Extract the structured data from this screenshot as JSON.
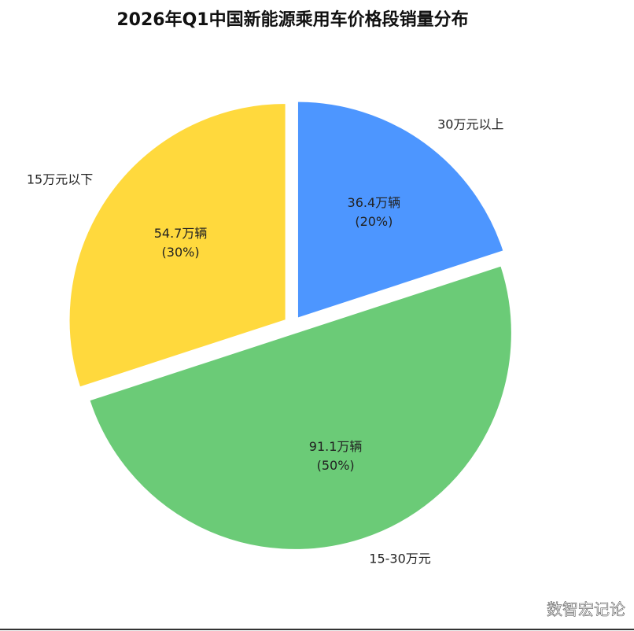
{
  "chart_data": {
    "type": "pie",
    "title": "2026年Q1中国新能源乘用车价格段销量分布",
    "categories": [
      "30万元以上",
      "15-30万元",
      "15万元以下"
    ],
    "values": [
      36.4,
      91.1,
      54.7
    ],
    "value_labels": [
      "36.4万辆",
      "91.1万辆",
      "54.7万辆"
    ],
    "percentages": [
      20,
      50,
      30
    ],
    "percentage_labels": [
      "(20%)",
      "(50%)",
      "(30%)"
    ],
    "colors": [
      "#4d96ff",
      "#6bcb77",
      "#ffd93d"
    ],
    "start_angle": 90,
    "direction": "clockwise",
    "explode": true,
    "watermark": "数智宏记论"
  }
}
